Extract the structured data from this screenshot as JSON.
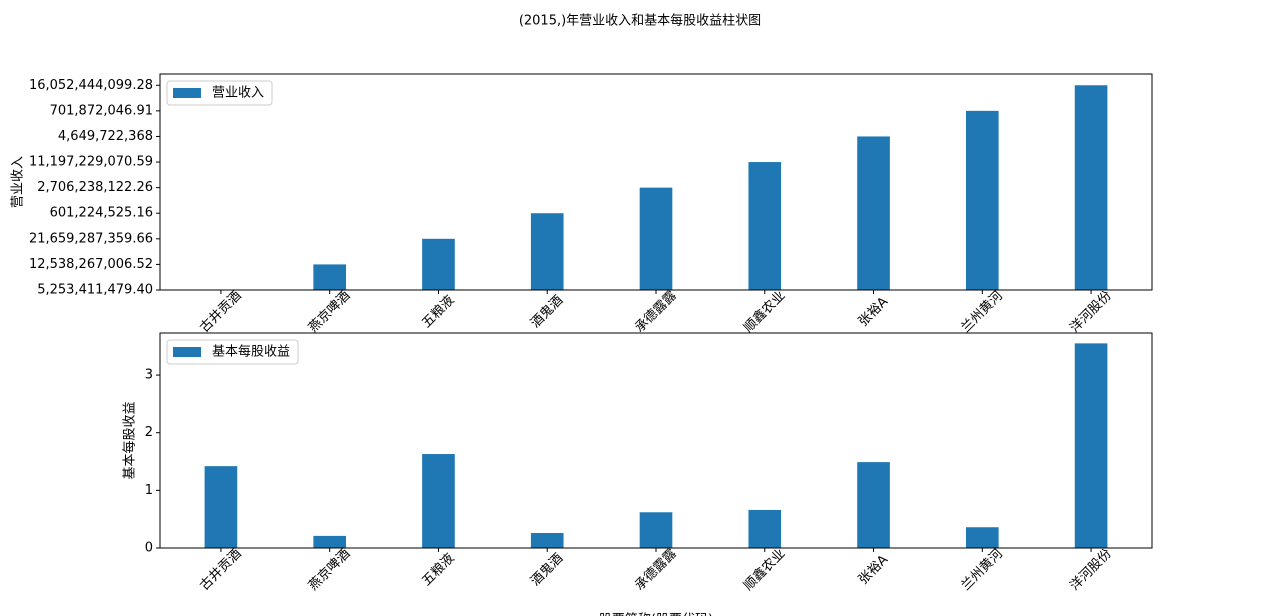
{
  "title": "(2015,)年营业收入和基本每股收益柱状图",
  "chart_data": [
    {
      "type": "bar",
      "ylabel": "营业收入",
      "legend": "upper left",
      "categories": [
        "古井贡酒",
        "燕京啤酒",
        "五粮液",
        "酒鬼酒",
        "承德露露",
        "顺鑫农业",
        "张裕A",
        "兰州黄河",
        "洋河股份"
      ],
      "series": [
        {
          "name": "营业收入",
          "color": "#1f77b4",
          "values": [
            0,
            1,
            2,
            3,
            4,
            5,
            6,
            7,
            8
          ]
        }
      ],
      "ylim": [
        0,
        8.44
      ],
      "yticks": [
        {
          "value": 0,
          "label": "5,253,411,479.40"
        },
        {
          "value": 1,
          "label": "12,538,267,006.52"
        },
        {
          "value": 2,
          "label": "21,659,287,359.66"
        },
        {
          "value": 3,
          "label": "601,224,525.16"
        },
        {
          "value": 4,
          "label": "2,706,238,122.26"
        },
        {
          "value": 5,
          "label": "11,197,229,070.59"
        },
        {
          "value": 6,
          "label": "4,649,722,368"
        },
        {
          "value": 7,
          "label": "701,872,046.91"
        },
        {
          "value": 8,
          "label": "16,052,444,099.28"
        }
      ]
    },
    {
      "type": "bar",
      "ylabel": "基本每股收益",
      "xlabel": "股票简称(股票代码)",
      "legend": "upper left",
      "categories": [
        "古井贡酒",
        "燕京啤酒",
        "五粮液",
        "酒鬼酒",
        "承德露露",
        "顺鑫农业",
        "张裕A",
        "兰州黄河",
        "洋河股份"
      ],
      "series": [
        {
          "name": "基本每股收益",
          "color": "#1f77b4",
          "values": [
            1.42,
            0.21,
            1.63,
            0.26,
            0.62,
            0.66,
            1.49,
            0.36,
            3.55
          ]
        }
      ],
      "ylim": [
        0,
        3.73
      ],
      "yticks": [
        0,
        1,
        2,
        3
      ]
    }
  ]
}
